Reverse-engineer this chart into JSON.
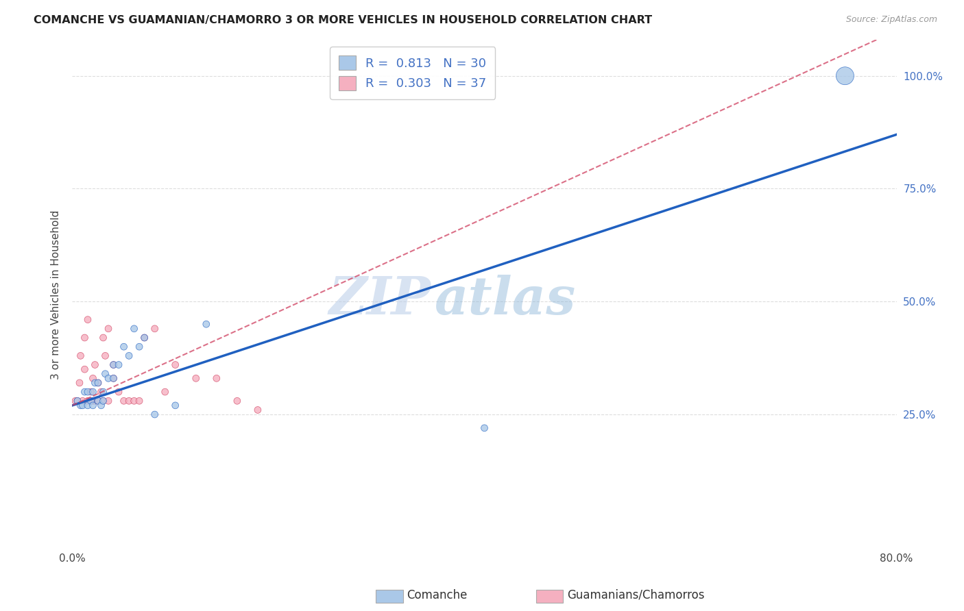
{
  "title": "COMANCHE VS GUAMANIAN/CHAMORRO 3 OR MORE VEHICLES IN HOUSEHOLD CORRELATION CHART",
  "source": "Source: ZipAtlas.com",
  "ylabel": "3 or more Vehicles in Household",
  "legend_label1": "Comanche",
  "legend_label2": "Guamanians/Chamorros",
  "r1": "0.813",
  "n1": "30",
  "r2": "0.303",
  "n2": "37",
  "color1": "#aac8e8",
  "color2": "#f5b0c0",
  "line_color1": "#2060c0",
  "line_color2": "#d04060",
  "line_color1_text": "#4472c4",
  "xmin": 0.0,
  "xmax": 0.8,
  "ymin": -0.05,
  "ymax": 1.08,
  "ytick_right_color": "#4472c4",
  "watermark_zip": "ZIP",
  "watermark_atlas": "atlas",
  "comanche_x": [
    0.005,
    0.008,
    0.01,
    0.012,
    0.015,
    0.015,
    0.018,
    0.02,
    0.02,
    0.022,
    0.025,
    0.025,
    0.028,
    0.03,
    0.03,
    0.032,
    0.035,
    0.04,
    0.04,
    0.045,
    0.05,
    0.055,
    0.06,
    0.065,
    0.07,
    0.08,
    0.1,
    0.13,
    0.4,
    0.75
  ],
  "comanche_y": [
    0.28,
    0.27,
    0.27,
    0.3,
    0.3,
    0.27,
    0.28,
    0.3,
    0.27,
    0.32,
    0.28,
    0.32,
    0.27,
    0.3,
    0.28,
    0.34,
    0.33,
    0.33,
    0.36,
    0.36,
    0.4,
    0.38,
    0.44,
    0.4,
    0.42,
    0.25,
    0.27,
    0.45,
    0.22,
    1.0
  ],
  "comanche_size": [
    50,
    50,
    50,
    50,
    50,
    50,
    50,
    50,
    50,
    50,
    50,
    50,
    50,
    50,
    50,
    50,
    50,
    50,
    50,
    50,
    50,
    50,
    50,
    50,
    50,
    50,
    50,
    50,
    50,
    350
  ],
  "guam_x": [
    0.003,
    0.005,
    0.007,
    0.008,
    0.01,
    0.012,
    0.012,
    0.015,
    0.015,
    0.018,
    0.02,
    0.02,
    0.022,
    0.022,
    0.025,
    0.025,
    0.028,
    0.03,
    0.03,
    0.032,
    0.035,
    0.035,
    0.04,
    0.04,
    0.045,
    0.05,
    0.055,
    0.06,
    0.065,
    0.07,
    0.08,
    0.09,
    0.1,
    0.12,
    0.14,
    0.16,
    0.18
  ],
  "guam_y": [
    0.28,
    0.28,
    0.32,
    0.38,
    0.28,
    0.35,
    0.42,
    0.28,
    0.46,
    0.3,
    0.28,
    0.33,
    0.28,
    0.36,
    0.28,
    0.32,
    0.3,
    0.28,
    0.42,
    0.38,
    0.28,
    0.44,
    0.33,
    0.36,
    0.3,
    0.28,
    0.28,
    0.28,
    0.28,
    0.42,
    0.44,
    0.3,
    0.36,
    0.33,
    0.33,
    0.28,
    0.26
  ],
  "guam_size": [
    50,
    50,
    50,
    50,
    50,
    50,
    50,
    50,
    50,
    50,
    50,
    50,
    50,
    50,
    50,
    50,
    50,
    50,
    50,
    50,
    50,
    50,
    50,
    50,
    50,
    50,
    50,
    50,
    50,
    50,
    50,
    50,
    50,
    50,
    50,
    50,
    50
  ],
  "trend1_x0": 0.0,
  "trend1_y0": 0.27,
  "trend1_x1": 0.8,
  "trend1_y1": 0.87,
  "trend2_x0": 0.0,
  "trend2_y0": 0.27,
  "trend2_x1": 0.8,
  "trend2_y1": 1.1
}
